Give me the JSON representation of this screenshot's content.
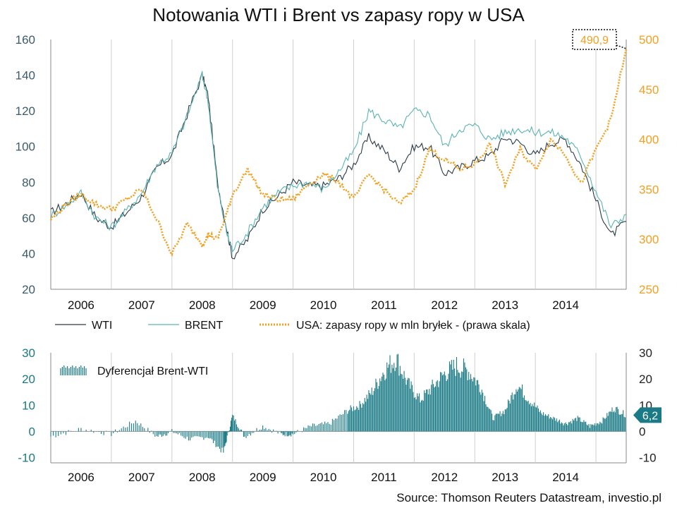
{
  "chart_data": [
    {
      "type": "line",
      "title": "Notowania WTI i Brent vs zapasy ropy w USA",
      "x_categories": [
        "2006",
        "2007",
        "2008",
        "2009",
        "2010",
        "2011",
        "2012",
        "2013",
        "2014"
      ],
      "x_range": [
        2006.0,
        2015.5
      ],
      "y_left": {
        "ticks": [
          20,
          40,
          60,
          80,
          100,
          120,
          140,
          160
        ],
        "range": [
          20,
          160
        ]
      },
      "y_right": {
        "ticks": [
          250,
          300,
          350,
          400,
          450,
          500
        ],
        "range": [
          250,
          500
        ]
      },
      "grid": "vertical year lines",
      "legend_position": "bottom",
      "series": [
        {
          "name": "WTI",
          "axis": "left",
          "color": "#2b3a47",
          "x": [
            2006.0,
            2006.25,
            2006.5,
            2006.75,
            2007.0,
            2007.25,
            2007.5,
            2007.75,
            2008.0,
            2008.25,
            2008.5,
            2008.6,
            2008.75,
            2008.9,
            2009.0,
            2009.25,
            2009.5,
            2009.75,
            2010.0,
            2010.25,
            2010.5,
            2010.75,
            2011.0,
            2011.25,
            2011.5,
            2011.75,
            2012.0,
            2012.25,
            2012.5,
            2012.75,
            2013.0,
            2013.25,
            2013.5,
            2013.75,
            2014.0,
            2014.25,
            2014.5,
            2014.75,
            2015.0,
            2015.25,
            2015.5
          ],
          "y": [
            63,
            68,
            74,
            60,
            55,
            63,
            72,
            88,
            95,
            118,
            140,
            128,
            80,
            55,
            38,
            48,
            65,
            72,
            80,
            78,
            78,
            82,
            90,
            105,
            98,
            88,
            100,
            100,
            85,
            88,
            92,
            95,
            105,
            102,
            95,
            102,
            104,
            90,
            70,
            50,
            58
          ]
        },
        {
          "name": "BRENT",
          "axis": "left",
          "color": "#5bb3b3",
          "x": [
            2006.0,
            2006.25,
            2006.5,
            2006.75,
            2007.0,
            2007.25,
            2007.5,
            2007.75,
            2008.0,
            2008.25,
            2008.5,
            2008.6,
            2008.75,
            2008.9,
            2009.0,
            2009.25,
            2009.5,
            2009.75,
            2010.0,
            2010.25,
            2010.5,
            2010.75,
            2011.0,
            2011.25,
            2011.5,
            2011.75,
            2012.0,
            2012.25,
            2012.5,
            2012.75,
            2013.0,
            2013.25,
            2013.5,
            2013.75,
            2014.0,
            2014.25,
            2014.5,
            2014.75,
            2015.0,
            2015.25,
            2015.5
          ],
          "y": [
            61,
            67,
            74,
            60,
            55,
            64,
            74,
            90,
            96,
            117,
            140,
            125,
            78,
            52,
            42,
            52,
            66,
            74,
            78,
            80,
            76,
            86,
            97,
            120,
            115,
            110,
            120,
            118,
            100,
            110,
            112,
            104,
            108,
            110,
            108,
            108,
            105,
            95,
            75,
            55,
            62
          ]
        },
        {
          "name": "USA: zapasy ropy w mln bryłek - (prawa skala)",
          "axis": "right",
          "color": "#f2a020",
          "dashed": true,
          "x": [
            2006.0,
            2006.25,
            2006.5,
            2006.75,
            2007.0,
            2007.25,
            2007.5,
            2007.75,
            2008.0,
            2008.25,
            2008.5,
            2008.6,
            2008.75,
            2008.9,
            2009.0,
            2009.25,
            2009.5,
            2009.75,
            2010.0,
            2010.25,
            2010.5,
            2010.75,
            2011.0,
            2011.25,
            2011.5,
            2011.75,
            2012.0,
            2012.25,
            2012.5,
            2012.75,
            2013.0,
            2013.25,
            2013.5,
            2013.75,
            2014.0,
            2014.25,
            2014.5,
            2014.75,
            2015.0,
            2015.25,
            2015.5
          ],
          "y": [
            320,
            335,
            345,
            335,
            330,
            340,
            350,
            320,
            285,
            315,
            295,
            305,
            300,
            325,
            345,
            370,
            345,
            340,
            340,
            355,
            365,
            358,
            340,
            365,
            350,
            335,
            350,
            390,
            380,
            370,
            375,
            395,
            355,
            390,
            370,
            400,
            385,
            355,
            390,
            420,
            490.9
          ]
        }
      ],
      "annotations": [
        {
          "text": "490,9",
          "series": "USA: zapasy ropy w mln bryłek - (prawa skala)",
          "x": 2015.5,
          "y": 490.9
        }
      ]
    },
    {
      "type": "bar",
      "title": "",
      "x_categories": [
        "2006",
        "2007",
        "2008",
        "2009",
        "2010",
        "2011",
        "2012",
        "2013",
        "2014"
      ],
      "x_range": [
        2006.0,
        2015.5
      ],
      "y_left": {
        "ticks": [
          -10,
          0,
          10,
          20,
          30
        ],
        "range": [
          -12,
          30
        ]
      },
      "y_right": {
        "ticks": [
          -10,
          0,
          10,
          20,
          30
        ],
        "range": [
          -12,
          30
        ]
      },
      "legend_position": "top-left",
      "series": [
        {
          "name": "Dyferencjał Brent-WTI",
          "color": "#1a7a86",
          "x": [
            2006.0,
            2006.5,
            2007.0,
            2007.4,
            2007.75,
            2008.0,
            2008.3,
            2008.6,
            2008.85,
            2009.0,
            2009.2,
            2009.5,
            2009.8,
            2010.0,
            2010.3,
            2010.6,
            2010.9,
            2011.1,
            2011.3,
            2011.5,
            2011.7,
            2011.9,
            2012.1,
            2012.3,
            2012.5,
            2012.7,
            2012.9,
            2013.1,
            2013.3,
            2013.5,
            2013.7,
            2013.9,
            2014.1,
            2014.3,
            2014.5,
            2014.7,
            2014.9,
            2015.1,
            2015.3,
            2015.5
          ],
          "y": [
            -2,
            1,
            -1,
            4,
            -2,
            0,
            -3,
            -2,
            -8,
            6,
            -2,
            2,
            -1,
            -1,
            2,
            3,
            8,
            10,
            15,
            23,
            28,
            18,
            12,
            17,
            22,
            25,
            23,
            17,
            5,
            8,
            18,
            12,
            7,
            5,
            3,
            5,
            2,
            4,
            9,
            6.2
          ]
        }
      ],
      "annotations": [
        {
          "text": "6,2",
          "x": 2015.5,
          "y": 6.2
        }
      ]
    }
  ],
  "legend": {
    "wti": "WTI",
    "brent": "BRENT",
    "usa": "USA: zapasy ropy w mln bryłek - (prawa skala)",
    "spread": "Dyferencjał Brent-WTI"
  },
  "callouts": {
    "top": "490,9",
    "bottom": "6,2"
  },
  "source": "Source: Thomson Reuters Datastream, investio.pl",
  "colors": {
    "wti": "#2b3a47",
    "brent": "#5bb3b3",
    "usa": "#f2a020",
    "spread": "#1a7a86",
    "left_axis_top": "#3c5a6e",
    "right_axis_top": "#f2a020",
    "left_axis_bottom": "#1a7a86"
  }
}
